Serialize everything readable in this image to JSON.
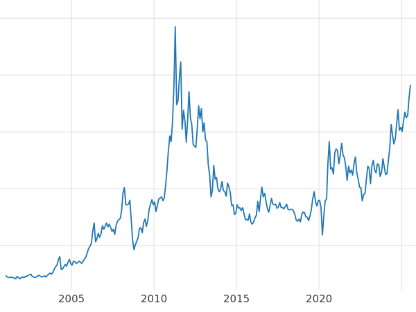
{
  "chart_data": {
    "type": "line",
    "title": "",
    "xlabel": "",
    "ylabel": "",
    "legend": "none",
    "grid": true,
    "background_color": "#ffffff",
    "line_color": "#1f77b4",
    "grid_color": "#dedede",
    "tick_label_color": "#3b3b3b",
    "x_axis": {
      "unit": "year",
      "xlim": [
        2000.67,
        2025.88
      ],
      "ticks": [
        {
          "value": 2005,
          "label": "2005"
        },
        {
          "value": 2010,
          "label": "2010"
        },
        {
          "value": 2015,
          "label": "2015"
        },
        {
          "value": 2020,
          "label": "2020"
        }
      ],
      "extra_gridlines": [
        2025
      ]
    },
    "y_axis": {
      "ylim": [
        2.25,
        53.2
      ],
      "gridline_values": [
        10,
        20,
        30,
        40,
        50
      ],
      "tick_labels_visible": false
    },
    "series": [
      {
        "name": "series-1",
        "frequency": "monthly",
        "start_year": 2001,
        "values": [
          4.7,
          4.5,
          4.4,
          4.4,
          4.5,
          4.4,
          4.3,
          4.2,
          4.6,
          4.4,
          4.2,
          4.4,
          4.5,
          4.4,
          4.6,
          4.6,
          4.8,
          4.9,
          5.0,
          4.6,
          4.5,
          4.4,
          4.5,
          4.7,
          4.8,
          4.6,
          4.5,
          4.6,
          4.7,
          4.5,
          4.8,
          5.0,
          5.2,
          5.0,
          5.3,
          5.9,
          6.3,
          6.6,
          7.5,
          8.1,
          5.9,
          5.9,
          6.3,
          6.7,
          6.4,
          7.1,
          7.6,
          6.8,
          6.6,
          7.3,
          7.2,
          6.9,
          7.0,
          7.3,
          7.1,
          6.9,
          7.3,
          7.7,
          8.0,
          8.8,
          9.5,
          9.9,
          10.4,
          12.6,
          14.0,
          10.7,
          11.2,
          12.2,
          11.5,
          12.1,
          13.5,
          12.9,
          13.4,
          14.0,
          13.3,
          13.8,
          13.2,
          12.5,
          12.9,
          12.0,
          13.6,
          14.3,
          14.6,
          14.8,
          16.2,
          19.3,
          20.2,
          17.2,
          17.2,
          17.3,
          18.0,
          14.5,
          10.9,
          9.3,
          10.2,
          10.8,
          11.4,
          13.1,
          13.1,
          12.3,
          14.1,
          14.7,
          13.4,
          14.4,
          16.4,
          17.3,
          18.1,
          17.2,
          17.7,
          16.0,
          17.1,
          18.2,
          18.4,
          18.6,
          17.9,
          18.4,
          20.6,
          23.4,
          26.8,
          29.3,
          28.3,
          31.7,
          37.8,
          48.5,
          34.8,
          35.5,
          39.5,
          42.3,
          30.5,
          33.8,
          32.0,
          28.2,
          32.1,
          37.1,
          32.5,
          31.3,
          27.8,
          27.5,
          27.3,
          30.6,
          34.6,
          32.3,
          34.1,
          30.0,
          31.6,
          28.6,
          28.3,
          24.2,
          22.4,
          18.6,
          19.7,
          24.1,
          21.7,
          22.0,
          20.0,
          19.5,
          19.9,
          21.3,
          19.7,
          19.5,
          18.7,
          21.0,
          20.4,
          19.4,
          17.1,
          17.2,
          15.5,
          15.7,
          17.2,
          16.6,
          16.7,
          16.2,
          16.7,
          15.6,
          14.6,
          14.6,
          14.5,
          15.6,
          14.1,
          13.8,
          14.2,
          14.9,
          15.4,
          17.8,
          16.0,
          18.4,
          20.3,
          18.6,
          19.2,
          17.8,
          16.5,
          15.9,
          17.1,
          18.3,
          17.3,
          17.2,
          17.3,
          16.6,
          16.8,
          17.6,
          16.7,
          16.7,
          16.5,
          16.9,
          17.3,
          16.4,
          16.3,
          16.4,
          16.4,
          16.1,
          15.5,
          14.5,
          14.3,
          14.7,
          14.2,
          15.5,
          15.9,
          15.8,
          15.1,
          15.0,
          14.4,
          15.3,
          16.4,
          18.3,
          19.5,
          17.7,
          17.0,
          17.9,
          18.0,
          16.7,
          11.9,
          15.2,
          17.9,
          18.2,
          24.4,
          28.3,
          23.5,
          23.7,
          22.6,
          26.4,
          27.0,
          26.7,
          24.4,
          26.0,
          28.0,
          25.9,
          25.5,
          23.9,
          21.5,
          24.0,
          22.8,
          23.3,
          22.4,
          24.4,
          25.6,
          22.8,
          21.7,
          20.3,
          20.2,
          17.9,
          19.0,
          19.2,
          21.8,
          24.0,
          23.6,
          20.9,
          24.1,
          25.0,
          23.3,
          22.8,
          24.4,
          24.2,
          22.2,
          22.9,
          25.3,
          23.8,
          22.5,
          22.7,
          25.1,
          27.2,
          31.3,
          29.4,
          27.9,
          28.8,
          31.5,
          33.9,
          30.3,
          30.8,
          30.1,
          31.9,
          33.5,
          32.5,
          32.9,
          36.0,
          38.2
        ]
      }
    ]
  }
}
